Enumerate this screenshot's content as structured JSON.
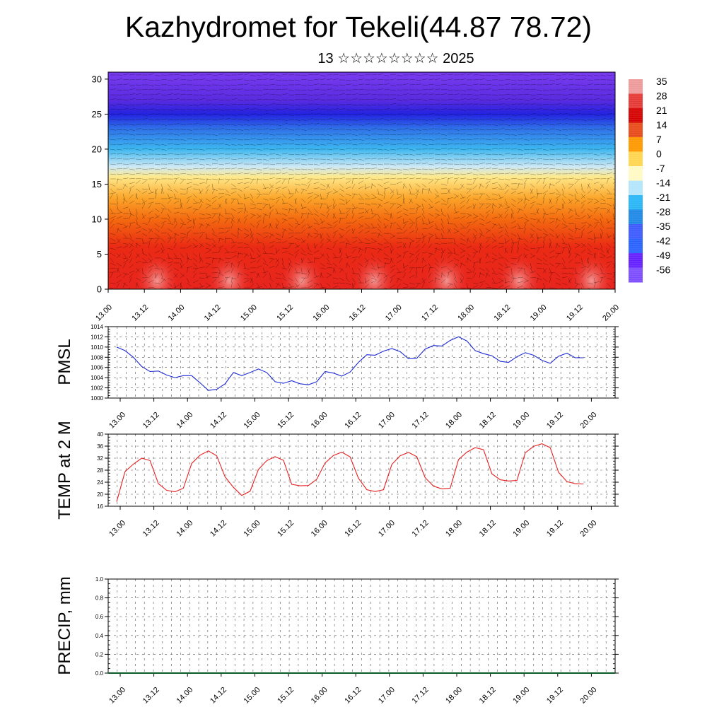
{
  "title": "Kazhydromet for Tekeli(44.87 78.72)",
  "subtitle": "13 ☆☆☆☆☆☆☆☆ 2025",
  "time_labels": [
    "13.00",
    "13.12",
    "14.00",
    "14.12",
    "15.00",
    "15.12",
    "16.00",
    "16.12",
    "17.00",
    "17.12",
    "18.00",
    "18.12",
    "19.00",
    "19.12",
    "20.00"
  ],
  "chart_data": [
    {
      "type": "heatmap",
      "name": "cross-section",
      "x_ticks": [
        "13.00",
        "13.12",
        "14.00",
        "14.12",
        "15.00",
        "15.12",
        "16.00",
        "16.12",
        "17.00",
        "17.12",
        "18.00",
        "18.12",
        "19.00",
        "19.12",
        "20.00"
      ],
      "y_ticks": [
        0,
        5,
        10,
        15,
        20,
        25,
        30
      ],
      "ylim": [
        0,
        31
      ],
      "colorbar_labels": [
        35,
        28,
        21,
        14,
        7,
        0,
        -7,
        -14,
        -21,
        -28,
        -35,
        -42,
        -49,
        -56
      ],
      "colorbar_colors": [
        "#ef9a9a",
        "#e53935",
        "#d50000",
        "#e64a19",
        "#ff9800",
        "#ffd54f",
        "#fff9c4",
        "#b3e5fc",
        "#29b6f6",
        "#1e88e5",
        "#3d5afe",
        "#2962ff",
        "#651fff",
        "#7c4dff"
      ],
      "band_colors": [
        {
          "at": 0,
          "color": "#e8241e"
        },
        {
          "at": 6,
          "color": "#ea2a14"
        },
        {
          "at": 10,
          "color": "#f46a10"
        },
        {
          "at": 13,
          "color": "#fba52a"
        },
        {
          "at": 16,
          "color": "#ffe98a"
        },
        {
          "at": 17.5,
          "color": "#cde8f5"
        },
        {
          "at": 20,
          "color": "#3db7f0"
        },
        {
          "at": 23,
          "color": "#2f6fe8"
        },
        {
          "at": 25,
          "color": "#2323e0"
        },
        {
          "at": 27,
          "color": "#5a2be0"
        },
        {
          "at": 31,
          "color": "#7a3cf0"
        }
      ]
    },
    {
      "type": "line",
      "name": "PMSL",
      "ylabel": "PMSL",
      "ylim": [
        1000,
        1014
      ],
      "y_ticks": [
        1000,
        1002,
        1004,
        1006,
        1008,
        1010,
        1012,
        1014
      ],
      "color": "#1f2bd6",
      "x_ticks": [
        "13.00",
        "13.12",
        "14.00",
        "14.12",
        "15.00",
        "15.12",
        "16.00",
        "16.12",
        "17.00",
        "17.12",
        "18.00",
        "18.12",
        "19.00",
        "19.12",
        "20.00"
      ],
      "x_range": [
        0,
        14
      ],
      "values": [
        1010.0,
        1009.3,
        1008.0,
        1006.2,
        1005.2,
        1005.3,
        1004.5,
        1004.0,
        1004.4,
        1004.4,
        1003.0,
        1001.5,
        1001.7,
        1002.8,
        1005.0,
        1004.4,
        1005.0,
        1005.7,
        1005.0,
        1003.2,
        1002.9,
        1003.4,
        1002.8,
        1002.6,
        1003.2,
        1005.2,
        1004.9,
        1004.3,
        1005.1,
        1007.0,
        1008.5,
        1008.4,
        1009.2,
        1009.7,
        1009.1,
        1007.7,
        1007.8,
        1009.6,
        1010.3,
        1010.2,
        1011.3,
        1012.0,
        1011.2,
        1009.3,
        1008.7,
        1008.3,
        1007.2,
        1007.0,
        1008.1,
        1008.9,
        1008.4,
        1007.4,
        1006.8,
        1008.2,
        1008.8,
        1007.9,
        1007.9
      ]
    },
    {
      "type": "line",
      "name": "TEMP at 2 M",
      "ylabel": "TEMP at 2 M",
      "ylim": [
        16,
        40
      ],
      "y_ticks": [
        16,
        20,
        24,
        28,
        32,
        36,
        40
      ],
      "color": "#e52020",
      "x_ticks": [
        "13.00",
        "13.12",
        "14.00",
        "14.12",
        "15.00",
        "15.12",
        "16.00",
        "16.12",
        "17.00",
        "17.12",
        "18.00",
        "18.12",
        "19.00",
        "19.12",
        "20.00"
      ],
      "x_range": [
        0,
        14
      ],
      "values": [
        17.5,
        27.5,
        30.0,
        32.0,
        31.2,
        23.5,
        21.3,
        20.8,
        22.0,
        30.2,
        33.0,
        34.4,
        32.8,
        25.8,
        22.3,
        19.6,
        21.0,
        28.2,
        31.2,
        32.5,
        31.3,
        23.3,
        22.8,
        22.9,
        25.0,
        30.4,
        32.9,
        34.0,
        32.4,
        25.3,
        21.5,
        20.9,
        21.5,
        29.9,
        32.8,
        33.9,
        32.5,
        25.5,
        22.7,
        21.8,
        22.0,
        31.5,
        34.0,
        35.5,
        34.8,
        26.8,
        24.8,
        24.4,
        24.6,
        33.8,
        35.9,
        36.8,
        35.5,
        27.3,
        24.2,
        23.5,
        23.4
      ]
    },
    {
      "type": "bar",
      "name": "PRECIP, mm",
      "ylabel": "PRECIP, mm",
      "ylim": [
        0,
        1
      ],
      "y_ticks": [
        "0.0",
        "0.2",
        "0.4",
        "0.6",
        "0.8",
        "1.0"
      ],
      "x_ticks": [
        "13.00",
        "13.12",
        "14.00",
        "14.12",
        "15.00",
        "15.12",
        "16.00",
        "16.12",
        "17.00",
        "17.12",
        "18.00",
        "18.12",
        "19.00",
        "19.12",
        "20.00"
      ],
      "x_range": [
        0,
        14
      ],
      "values": []
    }
  ]
}
